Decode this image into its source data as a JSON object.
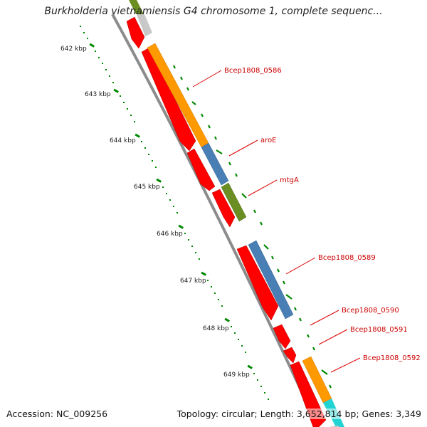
{
  "title": "Burkholderia vietnamiensis G4 chromosome 1, complete sequenc...",
  "footer": {
    "accession": "Accession: NC_009256",
    "topology": "Topology: circular; Length: 3,652,814 bp; Genes: 3,349"
  },
  "colors": {
    "backbone": "#8c8c8c",
    "cds": "#ff0000",
    "orange": "#ff9900",
    "blue": "#4a7fb5",
    "green": "#6b8e23",
    "gray": "#c8c8c8",
    "cyan": "#22d3d3",
    "tick": "#008800",
    "label": "#cc0000"
  },
  "scale_ticks": [
    "642 kbp",
    "643 kbp",
    "644 kbp",
    "645 kbp",
    "646 kbp",
    "647 kbp",
    "648 kbp",
    "649 kbp"
  ],
  "gene_labels": [
    "Bcep1808_0586",
    "aroE",
    "mtgA",
    "Bcep1808_0589",
    "Bcep1808_0590",
    "Bcep1808_0591",
    "Bcep1808_0592"
  ]
}
